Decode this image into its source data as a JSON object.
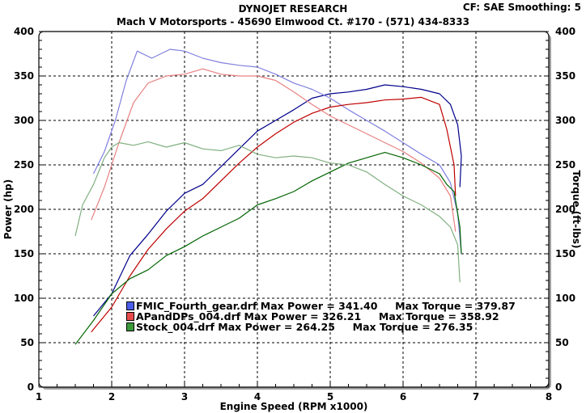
{
  "header": {
    "title": "DYNOJET RESEARCH",
    "subtitle": "Mach V Motorsports - 45690 Elmwood Ct. #170 - (571) 434-8333",
    "corner": "CF: SAE  Smoothing: 5"
  },
  "legend": [
    {
      "file": "FMIC_Fourth_gear.drf",
      "text": "FMIC_Fourth_gear.drf Max Power = 341.40     Max Torque = 379.87",
      "color": "#4a5ee8"
    },
    {
      "file": "APandDPs_004.drf",
      "text": "APandDPs_004.drf Max Power = 326.21     Max Torque = 358.92",
      "color": "#e84a4a"
    },
    {
      "file": "Stock_004.drf",
      "text": "Stock_004.drf Max Power = 264.25     Max Torque = 276.35",
      "color": "#3a9a3a"
    }
  ],
  "chart_data": {
    "type": "line",
    "title": "DYNOJET RESEARCH",
    "subtitle": "Mach V Motorsports - 45690 Elmwood Ct. #170 - (571) 434-8333",
    "annotation": "CF: SAE  Smoothing: 5",
    "xlabel": "Engine Speed (RPM x1000)",
    "ylabel": "Power (hp)",
    "y2label": "Torque (ft-lbs)",
    "xlim": [
      1,
      8
    ],
    "ylim": [
      0,
      400
    ],
    "y2lim": [
      0,
      400
    ],
    "xticks": [
      1,
      2,
      3,
      4,
      5,
      6,
      7,
      8
    ],
    "yticks": [
      0,
      50,
      100,
      150,
      200,
      250,
      300,
      350,
      400
    ],
    "grid": true,
    "legend_position": "lower-left inside",
    "series": [
      {
        "name": "FMIC_Fourth_gear.drf Power",
        "axis": "left",
        "color": "#00008b",
        "x": [
          1.75,
          2.0,
          2.25,
          2.5,
          2.75,
          3.0,
          3.25,
          3.5,
          3.75,
          4.0,
          4.25,
          4.5,
          4.75,
          5.0,
          5.25,
          5.5,
          5.75,
          6.0,
          6.25,
          6.5,
          6.65,
          6.75,
          6.8,
          6.78
        ],
        "values": [
          80,
          105,
          148,
          172,
          198,
          218,
          228,
          248,
          268,
          288,
          300,
          312,
          325,
          330,
          332,
          335,
          340,
          338,
          335,
          330,
          318,
          295,
          260,
          225
        ]
      },
      {
        "name": "FMIC_Fourth_gear.drf Torque",
        "axis": "right",
        "color": "#8080e0",
        "x": [
          1.75,
          1.9,
          2.05,
          2.2,
          2.35,
          2.55,
          2.8,
          3.0,
          3.25,
          3.5,
          3.75,
          4.0,
          4.25,
          4.5,
          4.75,
          5.0,
          5.25,
          5.5,
          5.75,
          6.0,
          6.25,
          6.5,
          6.65,
          6.75,
          6.8
        ],
        "values": [
          240,
          265,
          300,
          345,
          378,
          370,
          380,
          378,
          370,
          365,
          362,
          360,
          352,
          342,
          335,
          325,
          312,
          300,
          288,
          275,
          262,
          250,
          230,
          195,
          150
        ]
      },
      {
        "name": "APandDPs_004.drf Power",
        "axis": "left",
        "color": "#c00000",
        "x": [
          1.72,
          2.0,
          2.25,
          2.5,
          2.75,
          3.0,
          3.25,
          3.5,
          3.75,
          4.0,
          4.25,
          4.5,
          4.75,
          5.0,
          5.25,
          5.5,
          5.75,
          6.0,
          6.25,
          6.5,
          6.6,
          6.7,
          6.72
        ],
        "values": [
          62,
          90,
          125,
          155,
          178,
          198,
          212,
          232,
          252,
          270,
          285,
          298,
          308,
          315,
          318,
          320,
          323,
          324,
          326,
          318,
          290,
          250,
          215
        ]
      },
      {
        "name": "APandDPs_004.drf Torque",
        "axis": "right",
        "color": "#e88080",
        "x": [
          1.72,
          1.9,
          2.1,
          2.3,
          2.5,
          2.75,
          3.0,
          3.25,
          3.5,
          3.75,
          4.0,
          4.25,
          4.5,
          4.75,
          5.0,
          5.25,
          5.5,
          5.75,
          6.0,
          6.25,
          6.5,
          6.65,
          6.72
        ],
        "values": [
          188,
          225,
          275,
          320,
          342,
          350,
          352,
          358,
          352,
          350,
          350,
          345,
          332,
          318,
          305,
          295,
          285,
          275,
          265,
          252,
          235,
          215,
          175
        ]
      },
      {
        "name": "Stock_004.drf Power",
        "axis": "left",
        "color": "#006400",
        "x": [
          1.5,
          1.75,
          2.0,
          2.25,
          2.5,
          2.75,
          3.0,
          3.25,
          3.5,
          3.75,
          4.0,
          4.25,
          4.5,
          4.75,
          5.0,
          5.25,
          5.5,
          5.75,
          6.0,
          6.25,
          6.5,
          6.6,
          6.7,
          6.78,
          6.8
        ],
        "values": [
          48,
          75,
          105,
          122,
          132,
          148,
          158,
          170,
          180,
          190,
          205,
          212,
          220,
          232,
          242,
          252,
          258,
          264,
          258,
          250,
          240,
          228,
          220,
          180,
          150
        ]
      },
      {
        "name": "Stock_004.drf Torque",
        "axis": "right",
        "color": "#80b080",
        "x": [
          1.5,
          1.6,
          1.75,
          1.9,
          2.0,
          2.1,
          2.3,
          2.5,
          2.75,
          3.0,
          3.25,
          3.5,
          3.75,
          4.0,
          4.25,
          4.5,
          4.75,
          5.0,
          5.25,
          5.5,
          5.75,
          6.0,
          6.25,
          6.5,
          6.65,
          6.75,
          6.78
        ],
        "values": [
          170,
          205,
          228,
          258,
          270,
          275,
          272,
          276,
          270,
          275,
          268,
          266,
          272,
          262,
          258,
          260,
          258,
          252,
          250,
          242,
          228,
          215,
          205,
          192,
          180,
          160,
          118
        ]
      }
    ]
  }
}
